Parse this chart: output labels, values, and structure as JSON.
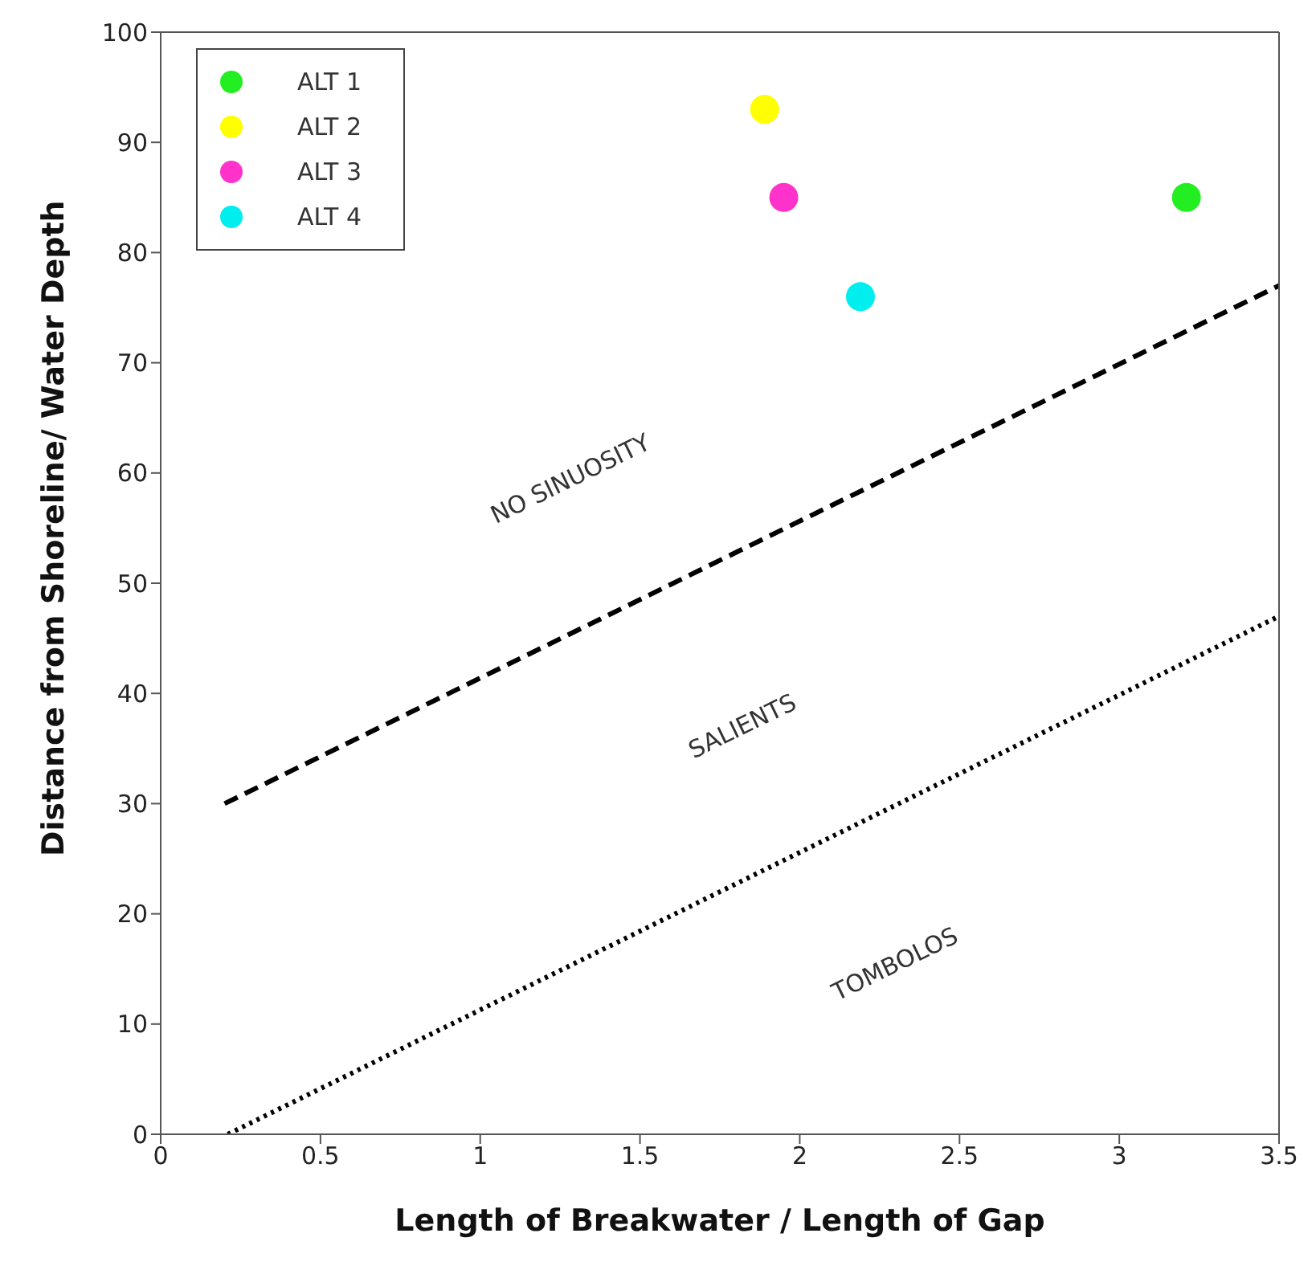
{
  "chart_data": {
    "type": "scatter",
    "xlabel": "Length of Breakwater / Length of Gap",
    "ylabel": "Distance from Shoreline/ Water Depth",
    "xlim": [
      0,
      3.5
    ],
    "xticks": [
      0,
      0.5,
      1,
      1.5,
      2,
      2.5,
      3,
      3.5
    ],
    "ylim": [
      0,
      100
    ],
    "yticks": [
      0,
      10,
      20,
      30,
      40,
      50,
      60,
      70,
      80,
      90,
      100
    ],
    "grid": false,
    "legend": "top left",
    "marker": "circle",
    "series": [
      {
        "name": "ALT 1",
        "color": "#22ee22",
        "x": [
          3.21
        ],
        "values": [
          85
        ]
      },
      {
        "name": "ALT 2",
        "color": "#ffff00",
        "x": [
          1.89
        ],
        "values": [
          93
        ]
      },
      {
        "name": "ALT 3",
        "color": "#ff33cc",
        "x": [
          1.95
        ],
        "values": [
          85
        ]
      },
      {
        "name": "ALT 4",
        "color": "#00eeee",
        "x": [
          2.19
        ],
        "values": [
          76
        ]
      },
      {
        "type": "line",
        "color": "#000000",
        "line_style": "dashed",
        "marker": "none",
        "x": [
          0.2,
          3.5
        ],
        "values": [
          30,
          77
        ]
      },
      {
        "type": "line",
        "color": "#000000",
        "line_style": "dotted",
        "marker": "none",
        "x": [
          0.21,
          3.5
        ],
        "values": [
          0,
          47
        ]
      }
    ],
    "annotations": [
      "NO SINUOSITY",
      "SALIENTS",
      "TOMBOLOS"
    ]
  }
}
